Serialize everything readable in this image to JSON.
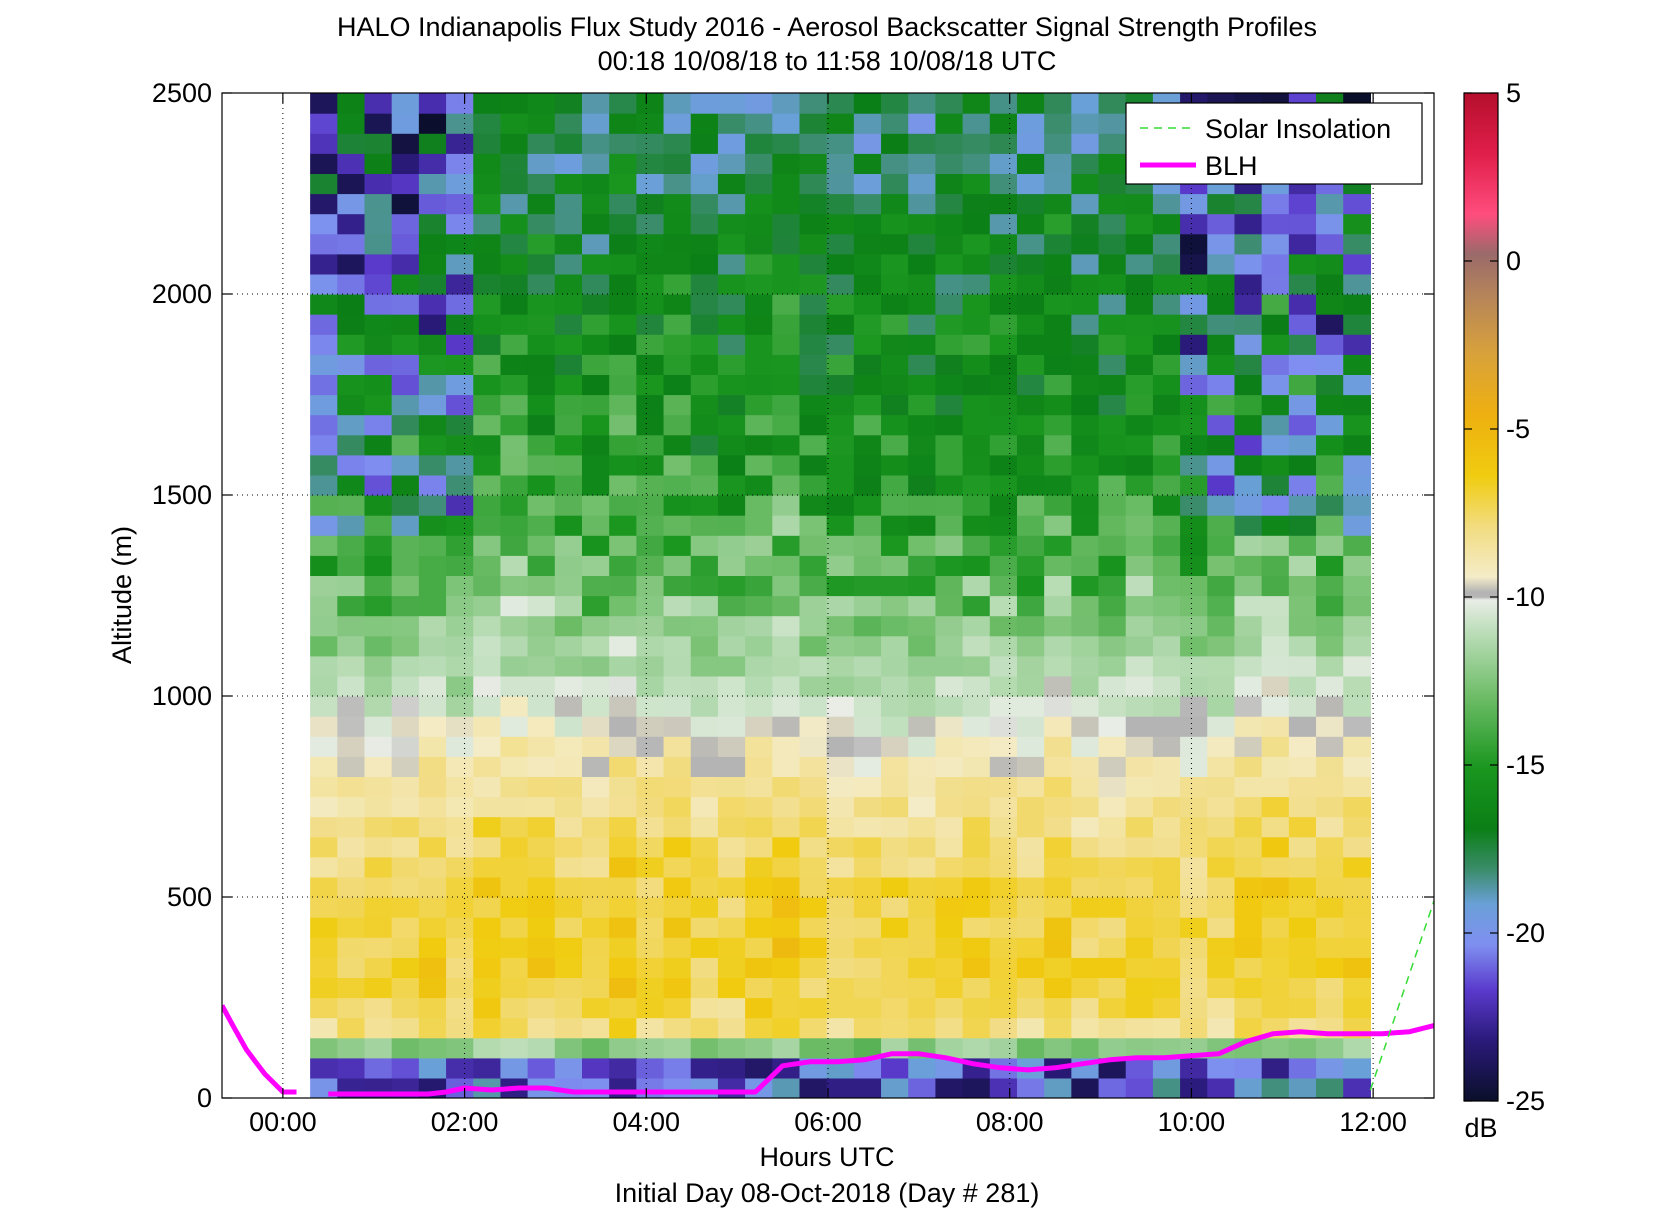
{
  "chart_data": {
    "type": "heatmap",
    "title": "HALO Indianapolis Flux Study 2016 - Aerosol Backscatter Signal Strength Profiles",
    "subtitle": "00:18 10/08/18 to 11:58 10/08/18  UTC",
    "xlabel": "Hours UTC",
    "xlabel2": "Initial Day 08-Oct-2018 (Day # 281)",
    "ylabel": "Altitude (m)",
    "xlim": [
      -0.67,
      12.67
    ],
    "ylim": [
      0,
      2500
    ],
    "x_ticks": [
      0,
      2,
      4,
      6,
      8,
      10,
      12
    ],
    "x_tick_labels": [
      "00:00",
      "02:00",
      "04:00",
      "06:00",
      "08:00",
      "10:00",
      "12:00"
    ],
    "y_ticks": [
      0,
      500,
      1000,
      1500,
      2000,
      2500
    ],
    "y_tick_labels": [
      "0",
      "500",
      "1000",
      "1500",
      "2000",
      "2500"
    ],
    "grid": true,
    "colorbar": {
      "range": [
        -25,
        5
      ],
      "ticks": [
        5,
        0,
        -5,
        -10,
        -15,
        -20,
        -25
      ],
      "tick_labels": [
        "5",
        "0",
        "-5",
        "-10",
        "-15",
        "-20",
        "-25"
      ],
      "unit": "dB"
    },
    "legend": {
      "placement": "top-right",
      "entries": [
        {
          "label": "Solar Insolation",
          "color": "#33dd33",
          "style": "dashed"
        },
        {
          "label": "BLH",
          "color": "#ff00ff",
          "style": "solid"
        }
      ]
    },
    "heatmap": {
      "x_start_hours": 0.3,
      "x_end_hours": 11.97,
      "columns": 39,
      "y_bin_m": 50,
      "rows": 50,
      "note_profile_dB_by_altitude": [
        {
          "alt": 75,
          "dB": -20
        },
        {
          "alt": 150,
          "dB": -8
        },
        {
          "alt": 300,
          "dB": -6.5
        },
        {
          "alt": 500,
          "dB": -6.8
        },
        {
          "alt": 700,
          "dB": -7.8
        },
        {
          "alt": 900,
          "dB": -9.5
        },
        {
          "alt": 1100,
          "dB": -11.5
        },
        {
          "alt": 1300,
          "dB": -13
        },
        {
          "alt": 1500,
          "dB": -14.5
        },
        {
          "alt": 1800,
          "dB": -15.5
        },
        {
          "alt": 2100,
          "dB": -16.5
        },
        {
          "alt": 2500,
          "dB": -18
        }
      ]
    },
    "series": [
      {
        "name": "BLH",
        "x": [
          -0.67,
          -0.55,
          -0.4,
          -0.2,
          0.0,
          0.15,
          0.5,
          0.8,
          1.0,
          1.3,
          1.6,
          1.8,
          2.0,
          2.3,
          2.6,
          2.9,
          3.2,
          3.5,
          3.8,
          4.1,
          4.4,
          4.7,
          5.0,
          5.2,
          5.5,
          5.8,
          6.1,
          6.4,
          6.7,
          7.0,
          7.3,
          7.6,
          7.9,
          8.2,
          8.5,
          8.8,
          9.1,
          9.4,
          9.7,
          10.0,
          10.3,
          10.6,
          10.9,
          11.2,
          11.5,
          11.8,
          12.1,
          12.4,
          12.67
        ],
        "y": [
          230,
          180,
          120,
          60,
          15,
          15,
          10,
          10,
          10,
          10,
          10,
          15,
          25,
          20,
          25,
          25,
          15,
          15,
          15,
          15,
          15,
          15,
          15,
          15,
          80,
          90,
          90,
          95,
          110,
          110,
          100,
          85,
          75,
          70,
          75,
          85,
          95,
          100,
          100,
          105,
          110,
          140,
          160,
          165,
          160,
          160,
          160,
          165,
          180
        ],
        "gap_x": [
          0.15,
          0.5
        ]
      },
      {
        "name": "Solar Insolation",
        "x": [
          11.97,
          12.67
        ],
        "y": [
          20,
          490
        ]
      }
    ]
  }
}
